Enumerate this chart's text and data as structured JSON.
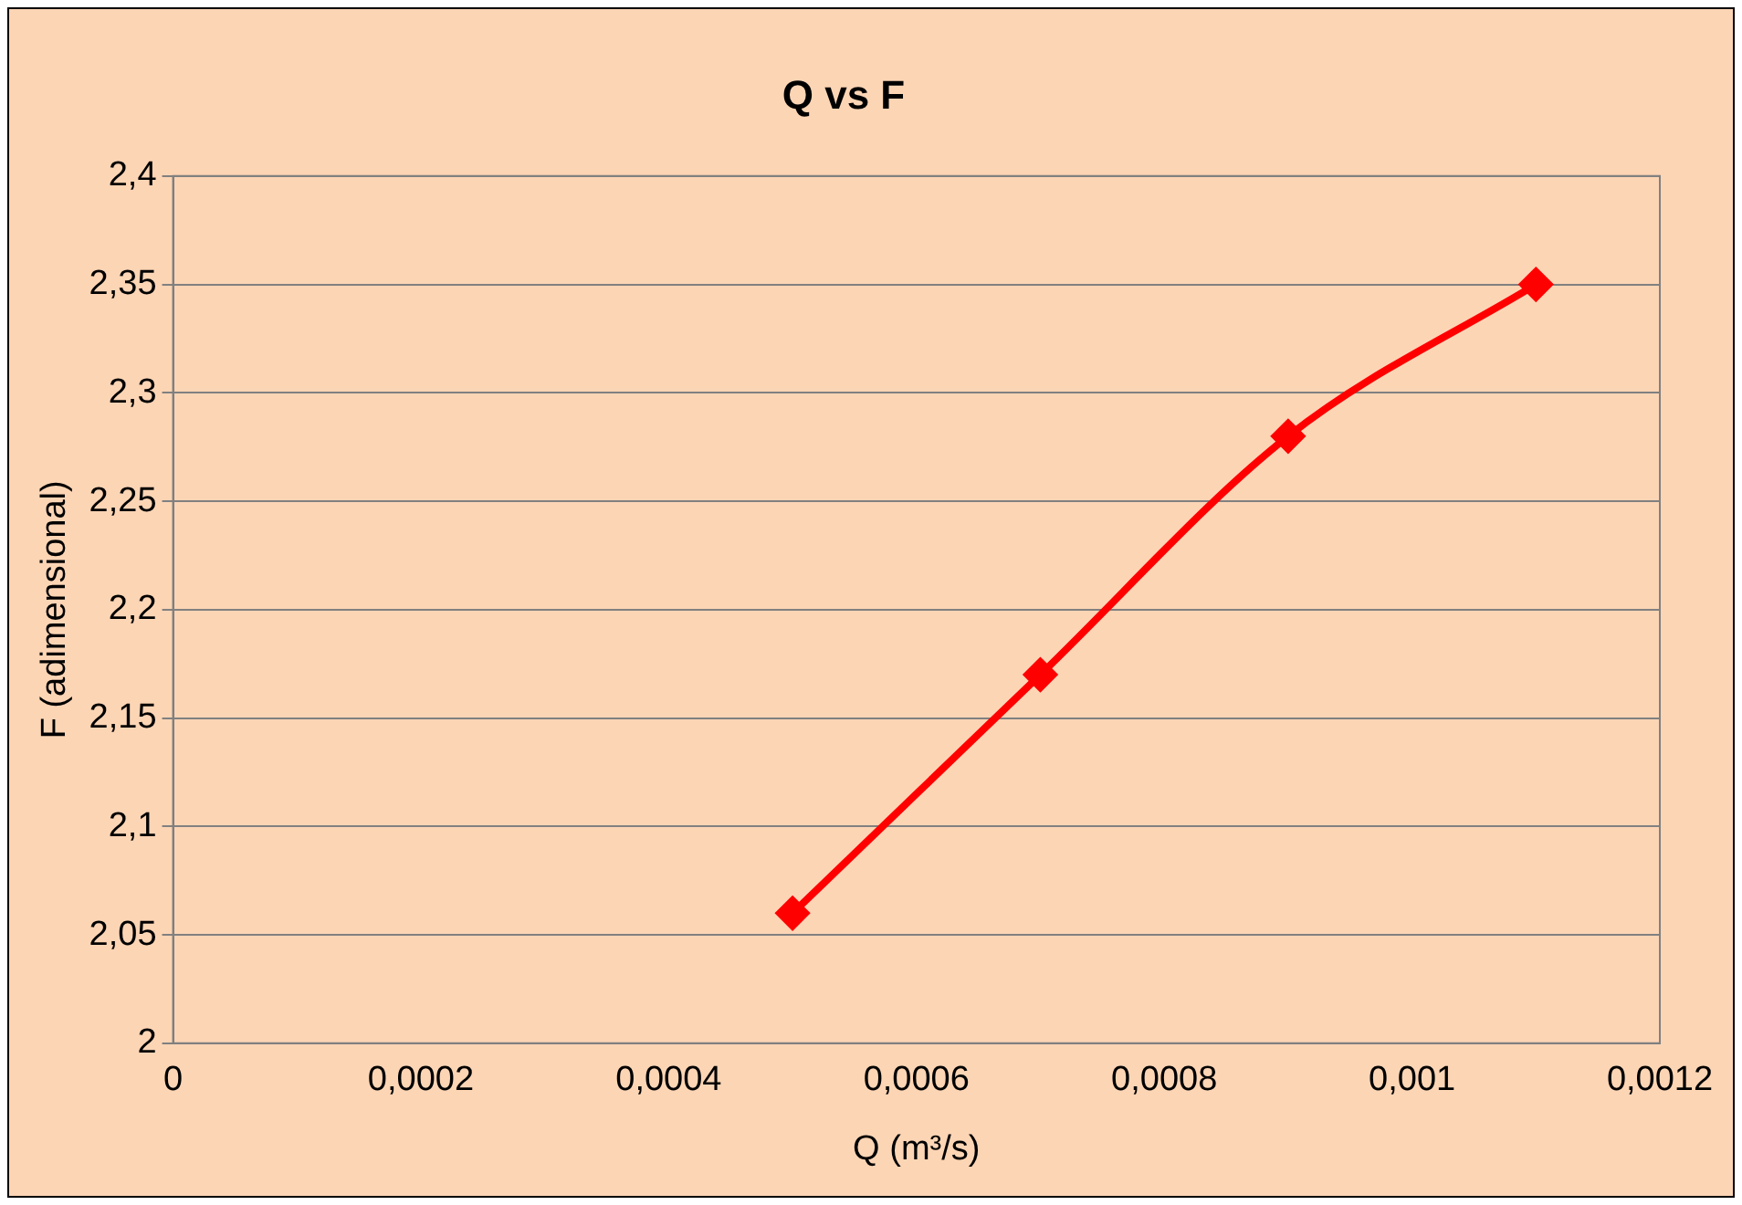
{
  "chart_data": {
    "type": "line",
    "title": "Q vs F",
    "xlabel": "Q (m³/s)",
    "ylabel": "F (adimensional)",
    "x": [
      0.0005,
      0.0007,
      0.0009,
      0.0011
    ],
    "series": [
      {
        "color": "#ff0000",
        "values": [
          2.06,
          2.17,
          2.28,
          2.35
        ]
      }
    ],
    "xlim": [
      0,
      0.0012
    ],
    "xticks": [
      0,
      {
        "value": 0.0002,
        "label": "0,0002"
      },
      {
        "value": 0.0004,
        "label": "0,0004"
      },
      {
        "value": 0.0006,
        "label": "0,0006"
      },
      {
        "value": 0.0008,
        "label": "0,0008"
      },
      {
        "value": 0.001,
        "label": "0,001"
      },
      {
        "value": 0.0012,
        "label": "0,0012"
      }
    ],
    "ylim": [
      2,
      2.4
    ],
    "yticks": [
      2,
      {
        "value": 2.05,
        "label": "2,05"
      },
      {
        "value": 2.1,
        "label": "2,1"
      },
      {
        "value": 2.15,
        "label": "2,15"
      },
      {
        "value": 2.2,
        "label": "2,2"
      },
      {
        "value": 2.25,
        "label": "2,25"
      },
      {
        "value": 2.3,
        "label": "2,3"
      },
      {
        "value": 2.35,
        "label": "2,35"
      },
      {
        "value": 2.4,
        "label": "2,4"
      }
    ],
    "grid": "y",
    "legend": false,
    "marker": "diamond",
    "line_style": "solid"
  }
}
